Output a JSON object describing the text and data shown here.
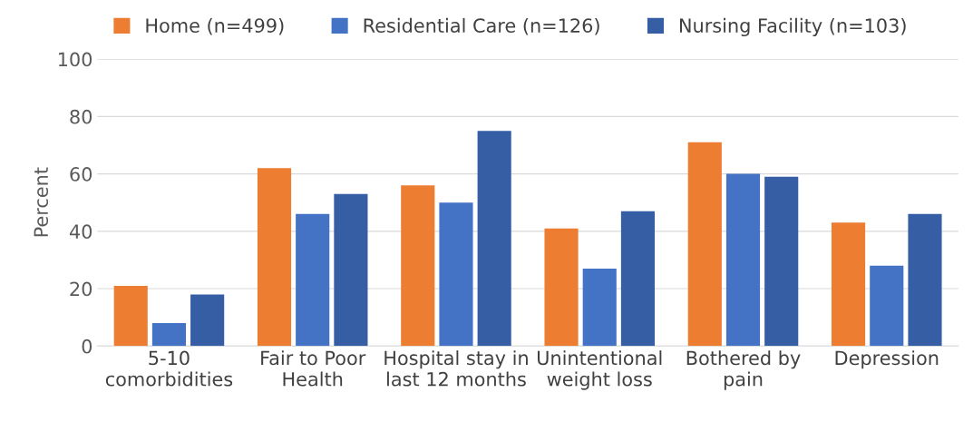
{
  "chart_data": {
    "type": "bar",
    "ylabel": "Percent",
    "categories": [
      "5-10\ncomorbidities",
      "Fair to Poor\nHealth",
      "Hospital stay in\nlast 12 months",
      "Unintentional\nweight loss",
      "Bothered by\npain",
      "Depression"
    ],
    "series": [
      {
        "name": "Home (n=499)",
        "color": "#ed7d31",
        "values": [
          21,
          62,
          56,
          41,
          71,
          43
        ]
      },
      {
        "name": "Residential Care (n=126)",
        "color": "#4472c4",
        "values": [
          8,
          46,
          50,
          27,
          60,
          28
        ]
      },
      {
        "name": "Nursing Facility (n=103)",
        "color": "#355ea4",
        "values": [
          18,
          53,
          75,
          47,
          59,
          46
        ]
      }
    ],
    "ylim": [
      0,
      100
    ],
    "yticks": [
      0,
      20,
      40,
      60,
      80,
      100
    ],
    "grid": "y",
    "legend": "top left"
  }
}
